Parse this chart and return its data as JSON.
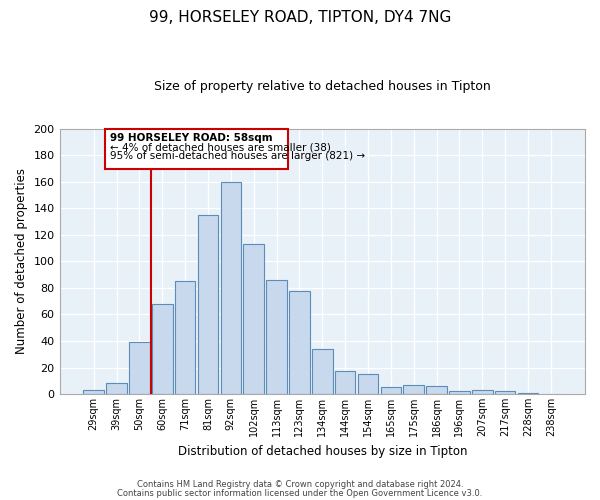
{
  "title": "99, HORSELEY ROAD, TIPTON, DY4 7NG",
  "subtitle": "Size of property relative to detached houses in Tipton",
  "xlabel": "Distribution of detached houses by size in Tipton",
  "ylabel": "Number of detached properties",
  "bar_labels": [
    "29sqm",
    "39sqm",
    "50sqm",
    "60sqm",
    "71sqm",
    "81sqm",
    "92sqm",
    "102sqm",
    "113sqm",
    "123sqm",
    "134sqm",
    "144sqm",
    "154sqm",
    "165sqm",
    "175sqm",
    "186sqm",
    "196sqm",
    "207sqm",
    "217sqm",
    "228sqm",
    "238sqm"
  ],
  "bar_values": [
    3,
    8,
    39,
    68,
    85,
    135,
    160,
    113,
    86,
    78,
    34,
    17,
    15,
    5,
    7,
    6,
    2,
    3,
    2,
    1,
    0
  ],
  "bar_color": "#c9d9ed",
  "bar_edge_color": "#5b8db8",
  "background_color": "#e8f0f8",
  "grid_color": "#ffffff",
  "vline_color": "#cc0000",
  "ylim": [
    0,
    200
  ],
  "yticks": [
    0,
    20,
    40,
    60,
    80,
    100,
    120,
    140,
    160,
    180,
    200
  ],
  "annotation_title": "99 HORSELEY ROAD: 58sqm",
  "annotation_line1": "← 4% of detached houses are smaller (38)",
  "annotation_line2": "95% of semi-detached houses are larger (821) →",
  "footer1": "Contains HM Land Registry data © Crown copyright and database right 2024.",
  "footer2": "Contains public sector information licensed under the Open Government Licence v3.0."
}
